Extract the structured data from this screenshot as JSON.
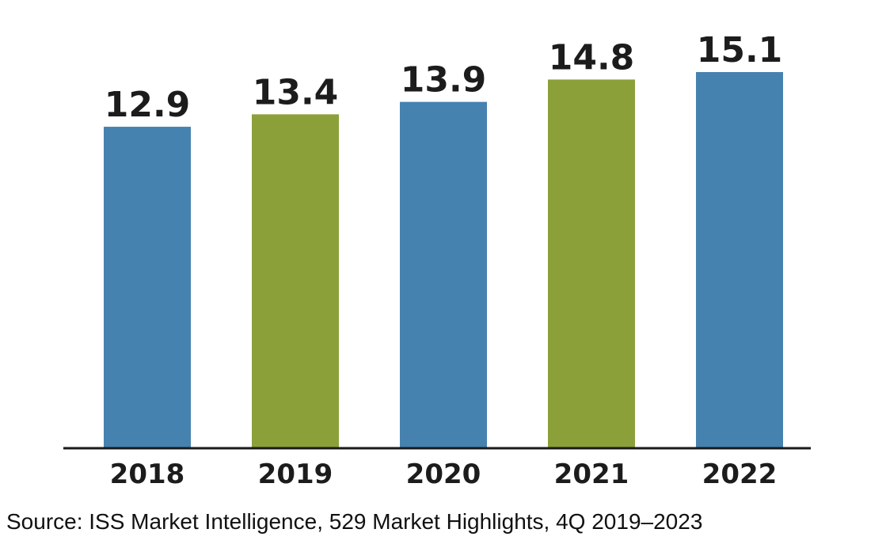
{
  "chart_data": {
    "type": "bar",
    "categories": [
      "2018",
      "2019",
      "2020",
      "2021",
      "2022"
    ],
    "values": [
      12.9,
      13.4,
      13.9,
      14.8,
      15.1
    ],
    "value_labels": [
      "12.9",
      "13.4",
      "13.9",
      "14.8",
      "15.1"
    ],
    "bar_colors": [
      "#4682b0",
      "#8ca03a",
      "#4682b0",
      "#8ca03a",
      "#4682b0"
    ],
    "ylim": [
      0,
      15.1
    ],
    "grid": false,
    "legend": "none",
    "title": "",
    "xlabel": "",
    "ylabel": ""
  },
  "source_note": "Source: ISS Market Intelligence, 529 Market Highlights, 4Q 2019–2023",
  "colors": {
    "axis": "#1a1a1a",
    "text": "#1c1c1c"
  }
}
